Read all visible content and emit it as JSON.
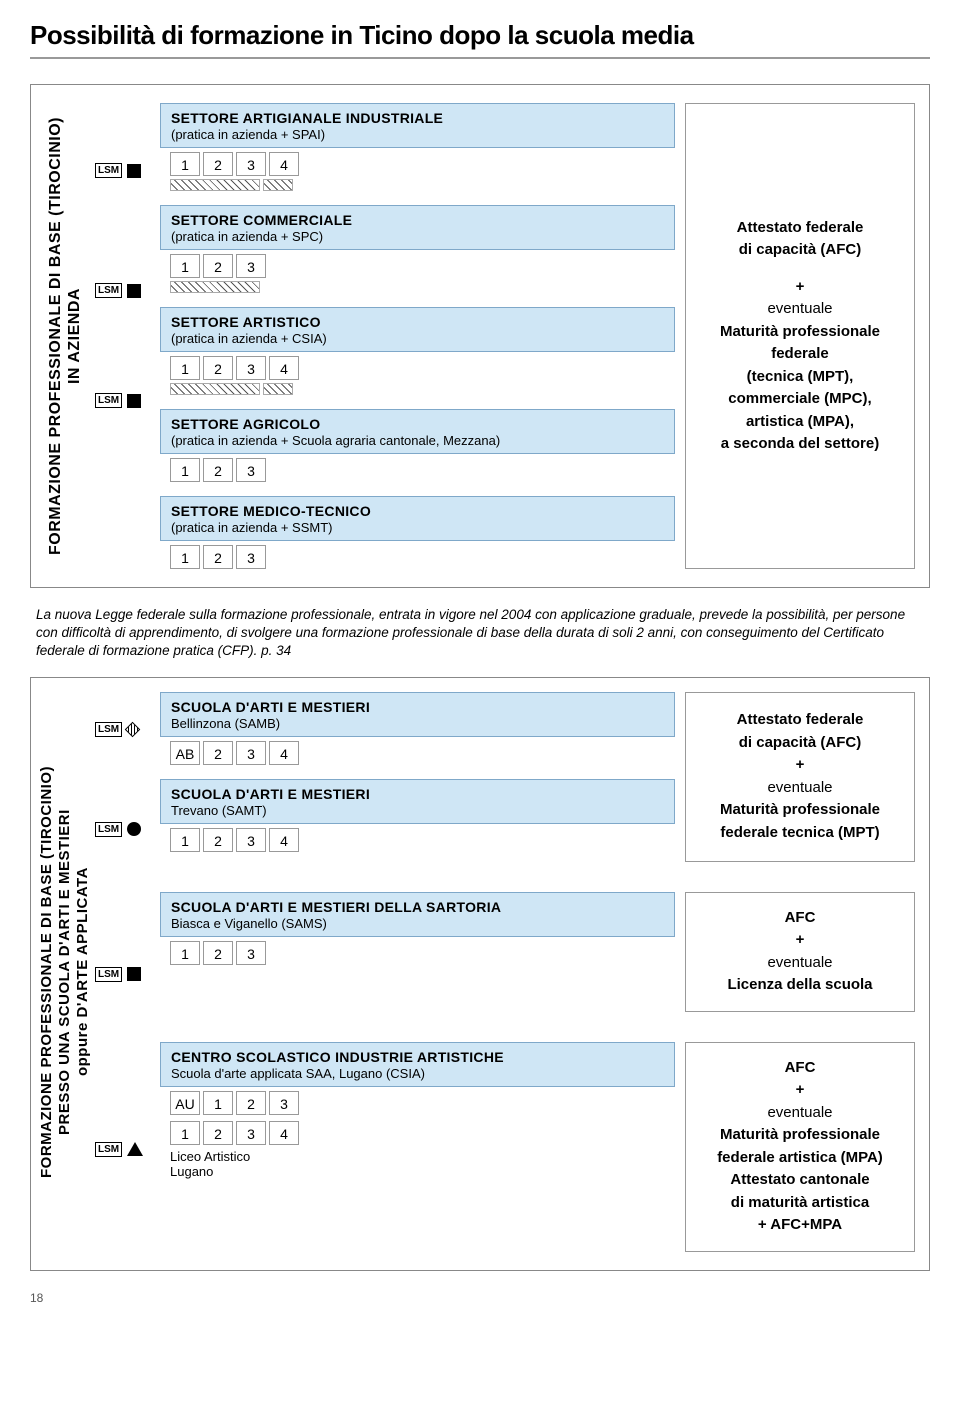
{
  "title": "Possibilità di formazione in Ticino dopo la scuola media",
  "pageNumber": "18",
  "lsm_label": "LSM",
  "colors": {
    "box_bg": "#cfe6f5",
    "box_border": "#7fa8c9",
    "frame": "#888888"
  },
  "block1": {
    "vertical_label": "FORMAZIONE PROFESSIONALE DI BASE (TIROCINIO)\nIN AZIENDA",
    "sectors": [
      {
        "title": "SETTORE ARTIGIANALE INDUSTRIALE",
        "sub": "(pratica in azienda + SPAI)",
        "years": [
          "1",
          "2",
          "3",
          "4"
        ],
        "hatch_widths": [
          90,
          30
        ]
      },
      {
        "title": "SETTORE COMMERCIALE",
        "sub": "(pratica in azienda + SPC)",
        "years": [
          "1",
          "2",
          "3"
        ],
        "hatch_widths": [
          90
        ]
      },
      {
        "title": "SETTORE ARTISTICO",
        "sub": "(pratica in azienda + CSIA)",
        "years": [
          "1",
          "2",
          "3",
          "4"
        ],
        "hatch_widths": [
          90,
          30
        ]
      },
      {
        "title": "SETTORE AGRICOLO",
        "sub": "(pratica in azienda + Scuola agraria cantonale, Mezzana)",
        "years": [
          "1",
          "2",
          "3"
        ],
        "hatch_widths": []
      },
      {
        "title": "SETTORE MEDICO-TECNICO",
        "sub": "(pratica in azienda + SSMT)",
        "years": [
          "1",
          "2",
          "3"
        ],
        "hatch_widths": []
      }
    ],
    "outcome": {
      "l1": "Attestato federale",
      "l2": "di capacità (AFC)",
      "l3": "+",
      "l4": "eventuale",
      "l5": "Maturità professionale",
      "l6": "federale",
      "l7": "(tecnica (MPT),",
      "l8": "commerciale (MPC),",
      "l9": "artistica (MPA),",
      "l10": "a seconda del settore)"
    }
  },
  "intertext": "La nuova Legge federale sulla formazione professionale, entrata in vigore nel 2004 con applicazione graduale, prevede la possibilità, per persone con difficoltà di apprendimento, di svolgere una formazione professionale di base della durata di soli 2 anni, con conseguimento del Certificato federale di formazione pratica (CFP). p. 34",
  "block2": {
    "vertical_label": "FORMAZIONE PROFESSIONALE DI BASE (TIROCINIO)\nPRESSO UNA SCUOLA D'ARTI E MESTIERI\noppure D'ARTE APPLICATA",
    "groups": [
      {
        "sectors": [
          {
            "title": "SCUOLA D'ARTI E MESTIERI",
            "sub": "Bellinzona (SAMB)",
            "years": [
              "AB",
              "2",
              "3",
              "4"
            ]
          },
          {
            "title": "SCUOLA D'ARTI E MESTIERI",
            "sub": "Trevano (SAMT)",
            "years": [
              "1",
              "2",
              "3",
              "4"
            ]
          }
        ],
        "outcome": {
          "l1": "Attestato federale",
          "l2": "di capacità (AFC)",
          "l3": "+",
          "l4": "eventuale",
          "l5": "Maturità professionale",
          "l6": "federale tecnica (MPT)"
        }
      },
      {
        "sectors": [
          {
            "title": "SCUOLA D'ARTI E MESTIERI DELLA SARTORIA",
            "sub": "Biasca e Viganello (SAMS)",
            "years": [
              "1",
              "2",
              "3"
            ]
          }
        ],
        "outcome": {
          "l1": "AFC",
          "l2": "+",
          "l3": "eventuale",
          "l4": "Licenza della scuola"
        }
      },
      {
        "sectors": [
          {
            "title": "CENTRO SCOLASTICO INDUSTRIE ARTISTICHE",
            "sub": "Scuola d'arte applicata SAA, Lugano (CSIA)",
            "years": [
              "AU",
              "1",
              "2",
              "3"
            ],
            "years2": [
              "1",
              "2",
              "3",
              "4"
            ],
            "tail1": "Liceo Artistico",
            "tail2": "Lugano"
          }
        ],
        "outcome": {
          "l1": "AFC",
          "l2": "+",
          "l3": "eventuale",
          "l4": "Maturità professionale",
          "l5": "federale artistica  (MPA)",
          "l6": "Attestato cantonale",
          "l7": "di maturità artistica",
          "l8": "+ AFC+MPA"
        }
      }
    ]
  }
}
